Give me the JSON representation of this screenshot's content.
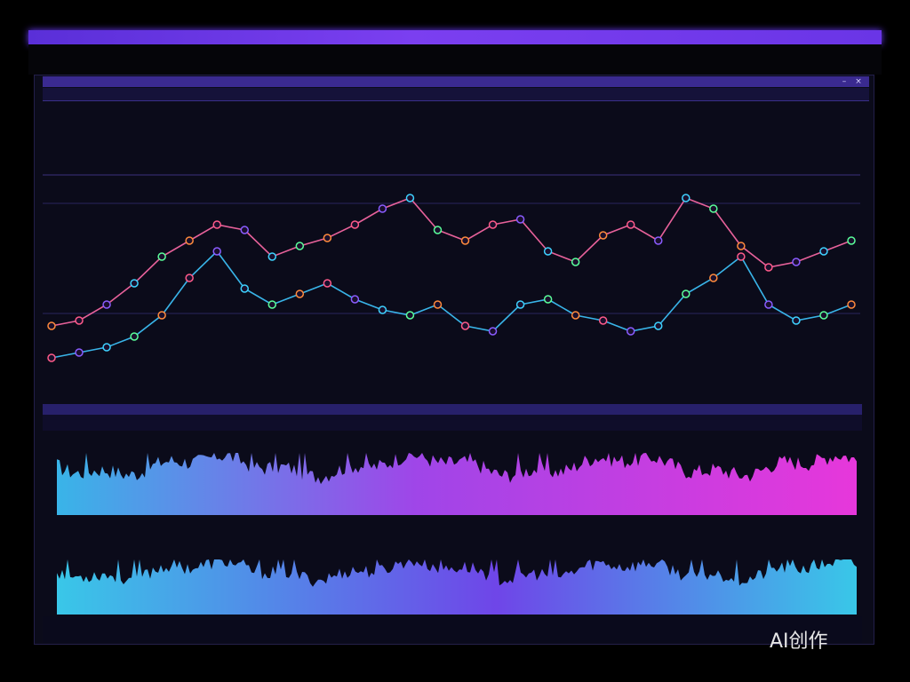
{
  "window": {
    "title": "",
    "header_right": ""
  },
  "toolbar": {
    "tabs": []
  },
  "chart_upper": {
    "legend": [],
    "series_colors": [
      "#ff8a3c",
      "#ff5a8a",
      "#8a5cff",
      "#3ed2ff",
      "#5aff9a"
    ]
  },
  "chart_waveforms": {
    "top_label": "",
    "bottom_label": "",
    "bottom_right_label": "",
    "top_colors": [
      "#3ec7ff",
      "#b04cff",
      "#ff3cf0"
    ],
    "bottom_colors": [
      "#3edcff",
      "#7a4cff",
      "#b05cff"
    ]
  },
  "footer": {
    "buttons": []
  },
  "watermark": "AI创作",
  "chart_data": [
    {
      "type": "line",
      "title": "",
      "series": [
        {
          "values": [
            22,
            24,
            30,
            38,
            48,
            54,
            60,
            58,
            48,
            52,
            55,
            60,
            66,
            70,
            58,
            54,
            60,
            62,
            50,
            46,
            56,
            60,
            54,
            70,
            66,
            52,
            44,
            46,
            50,
            54
          ]
        },
        {
          "values": [
            10,
            12,
            14,
            18,
            26,
            40,
            50,
            36,
            30,
            34,
            38,
            32,
            28,
            26,
            30,
            22,
            20,
            30,
            32,
            26,
            24,
            20,
            22,
            34,
            40,
            48,
            30,
            24,
            26,
            30
          ]
        }
      ]
    },
    {
      "type": "area",
      "title": "",
      "series": [
        {
          "values": []
        }
      ]
    },
    {
      "type": "area",
      "title": "",
      "series": [
        {
          "values": []
        }
      ]
    }
  ]
}
